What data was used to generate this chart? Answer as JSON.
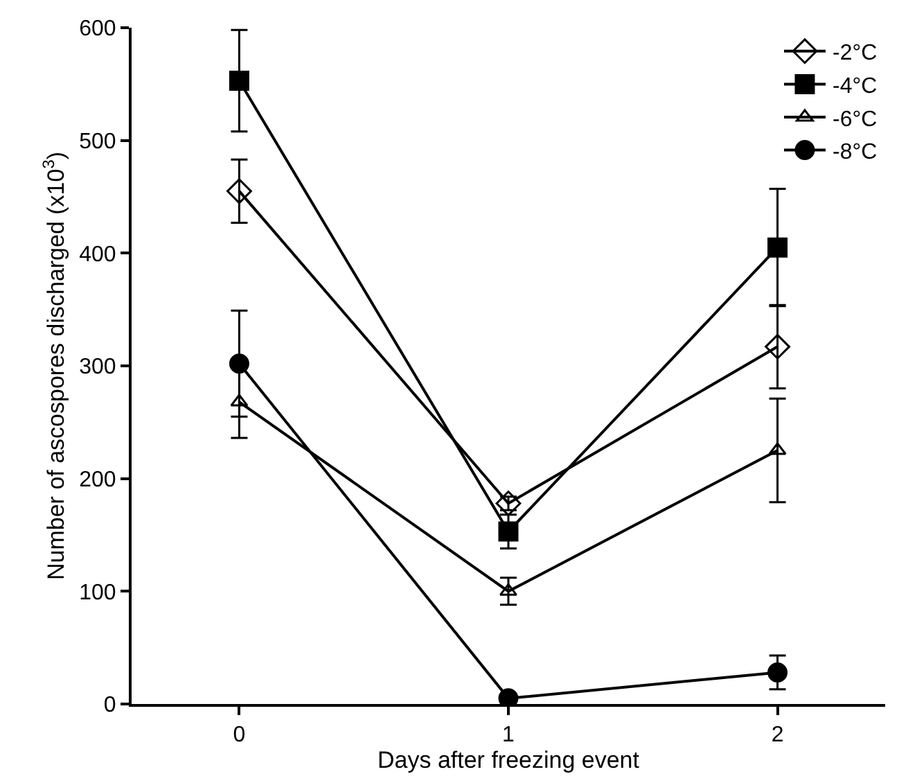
{
  "chart_data": {
    "type": "line",
    "xlabel": "Days after freezing event",
    "ylabel": "Number of ascospores discharged (x10$^{3}$)",
    "x": [
      0,
      1,
      2
    ],
    "xlim": [
      -0.4,
      2.4
    ],
    "xticks": [
      0,
      1,
      2
    ],
    "ylim": [
      0,
      600
    ],
    "yticks": [
      0,
      100,
      200,
      300,
      400,
      500,
      600
    ],
    "legend": "top right",
    "series": [
      {
        "name": "-2°C",
        "color": "#000000",
        "marker": "diamond",
        "values": [
          455,
          178,
          317
        ],
        "errors": [
          28,
          6,
          37
        ]
      },
      {
        "name": "-4°C",
        "color": "#000000",
        "marker": "square",
        "values": [
          553,
          153,
          405
        ],
        "errors": [
          45,
          15,
          52
        ]
      },
      {
        "name": "-6°C",
        "color": "#000000",
        "marker": "triangle",
        "values": [
          268,
          100,
          225
        ],
        "errors": [
          32,
          12,
          46
        ]
      },
      {
        "name": "-8°C",
        "color": "#000000",
        "marker": "circle",
        "values": [
          302,
          5,
          28
        ],
        "errors": [
          47,
          3,
          15
        ]
      }
    ]
  }
}
